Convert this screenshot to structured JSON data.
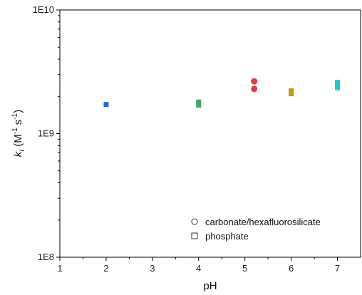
{
  "chart_data": {
    "type": "scatter",
    "title": "",
    "xlabel": "pH",
    "ylabel": {
      "base": "k",
      "sub": "I",
      "unit_open": " (M",
      "unit_sup1": "-1",
      "unit_mid": " s",
      "unit_sup2": "-1",
      "unit_close": ")"
    },
    "x_scale": "linear",
    "xlim": [
      1,
      7.5
    ],
    "x_ticks": [
      1,
      2,
      3,
      4,
      5,
      6,
      7
    ],
    "x_tick_labels": [
      "1",
      "2",
      "3",
      "4",
      "5",
      "6",
      "7"
    ],
    "y_scale": "log",
    "ylim": [
      100000000,
      10000000000
    ],
    "y_ticks": [
      100000000,
      1000000000,
      10000000000
    ],
    "y_tick_labels": [
      "1E8",
      "1E9",
      "1E10"
    ],
    "grid": false,
    "legend_position": "bottom-right",
    "legend": [
      {
        "label": "carbonate/hexafluorosilicate",
        "marker": "circle"
      },
      {
        "label": "phosphate",
        "marker": "square"
      }
    ],
    "series": [
      {
        "marker": "square",
        "color": "#1f6fd0",
        "points": [
          [
            2.0,
            1720000000
          ]
        ]
      },
      {
        "marker": "square",
        "color": "#3fa86a",
        "points": [
          [
            4.0,
            1700000000
          ],
          [
            4.0,
            1800000000
          ]
        ]
      },
      {
        "marker": "circle",
        "color": "#e8383d",
        "points": [
          [
            5.2,
            2300000000
          ],
          [
            5.2,
            2650000000
          ]
        ]
      },
      {
        "marker": "square",
        "color": "#c9960c",
        "points": [
          [
            6.0,
            2100000000
          ],
          [
            6.0,
            2220000000
          ]
        ]
      },
      {
        "marker": "square",
        "color": "#1ec9c9",
        "points": [
          [
            7.0,
            2350000000
          ],
          [
            7.0,
            2480000000
          ],
          [
            7.0,
            2600000000
          ]
        ]
      }
    ]
  }
}
